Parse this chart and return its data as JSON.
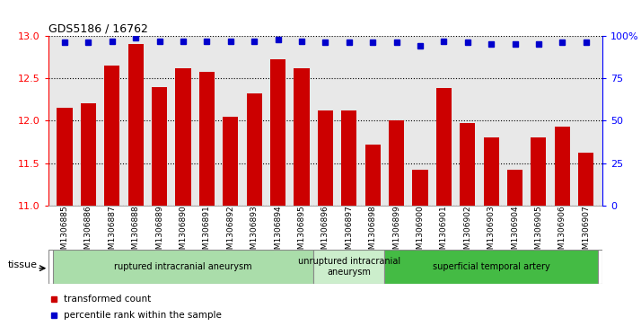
{
  "title": "GDS5186 / 16762",
  "samples": [
    "GSM1306885",
    "GSM1306886",
    "GSM1306887",
    "GSM1306888",
    "GSM1306889",
    "GSM1306890",
    "GSM1306891",
    "GSM1306892",
    "GSM1306893",
    "GSM1306894",
    "GSM1306895",
    "GSM1306896",
    "GSM1306897",
    "GSM1306898",
    "GSM1306899",
    "GSM1306900",
    "GSM1306901",
    "GSM1306902",
    "GSM1306903",
    "GSM1306904",
    "GSM1306905",
    "GSM1306906",
    "GSM1306907"
  ],
  "bar_values": [
    12.15,
    12.2,
    12.65,
    12.9,
    12.4,
    12.62,
    12.58,
    12.05,
    12.32,
    12.72,
    12.62,
    12.12,
    12.12,
    11.72,
    12.0,
    11.42,
    12.38,
    11.97,
    11.8,
    11.42,
    11.8,
    11.93,
    11.62
  ],
  "percentile_values": [
    96,
    96,
    97,
    99,
    97,
    97,
    97,
    97,
    97,
    98,
    97,
    96,
    96,
    96,
    96,
    94,
    97,
    96,
    95,
    95,
    95,
    96,
    96
  ],
  "ylim_left": [
    11,
    13
  ],
  "ylim_right": [
    0,
    100
  ],
  "yticks_left": [
    11,
    11.5,
    12,
    12.5,
    13
  ],
  "yticks_right": [
    0,
    25,
    50,
    75,
    100
  ],
  "ytick_labels_right": [
    "0",
    "25",
    "50",
    "75",
    "100%"
  ],
  "bar_color": "#cc0000",
  "dot_color": "#0000cc",
  "grid_color": "#000000",
  "bg_color": "#d8d8d8",
  "plot_bg": "#e8e8e8",
  "groups": [
    {
      "label": "ruptured intracranial aneurysm",
      "start": 0,
      "end": 11,
      "color": "#aaddaa"
    },
    {
      "label": "unruptured intracranial\naneurysm",
      "start": 11,
      "end": 14,
      "color": "#cceecc"
    },
    {
      "label": "superficial temporal artery",
      "start": 14,
      "end": 23,
      "color": "#44bb44"
    }
  ],
  "legend_items": [
    {
      "label": "transformed count",
      "color": "#cc0000"
    },
    {
      "label": "percentile rank within the sample",
      "color": "#0000cc"
    }
  ],
  "tissue_label": "tissue"
}
